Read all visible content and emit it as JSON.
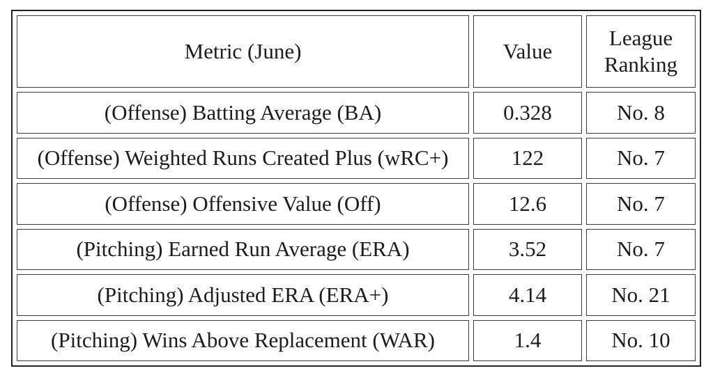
{
  "page": {
    "background": "#ffffff",
    "colors": {
      "outer_border": "#212121",
      "cell_border": "#3a3a3a",
      "text": "#1c1c1c"
    }
  },
  "table": {
    "columns": [
      "Metric (June)",
      "Value",
      "League Ranking"
    ],
    "rows": [
      {
        "metric": "(Offense) Batting Average (BA)",
        "value": "0.328",
        "ranking": "No. 8"
      },
      {
        "metric": "(Offense) Weighted Runs Created Plus (wRC+)",
        "value": "122",
        "ranking": "No. 7"
      },
      {
        "metric": "(Offense) Offensive Value (Off)",
        "value": "12.6",
        "ranking": "No. 7"
      },
      {
        "metric": "(Pitching) Earned Run Average (ERA)",
        "value": "3.52",
        "ranking": "No. 7"
      },
      {
        "metric": "(Pitching) Adjusted ERA (ERA+)",
        "value": "4.14",
        "ranking": "No. 21"
      },
      {
        "metric": "(Pitching) Wins Above Replacement (WAR)",
        "value": "1.4",
        "ranking": "No. 10"
      }
    ]
  }
}
